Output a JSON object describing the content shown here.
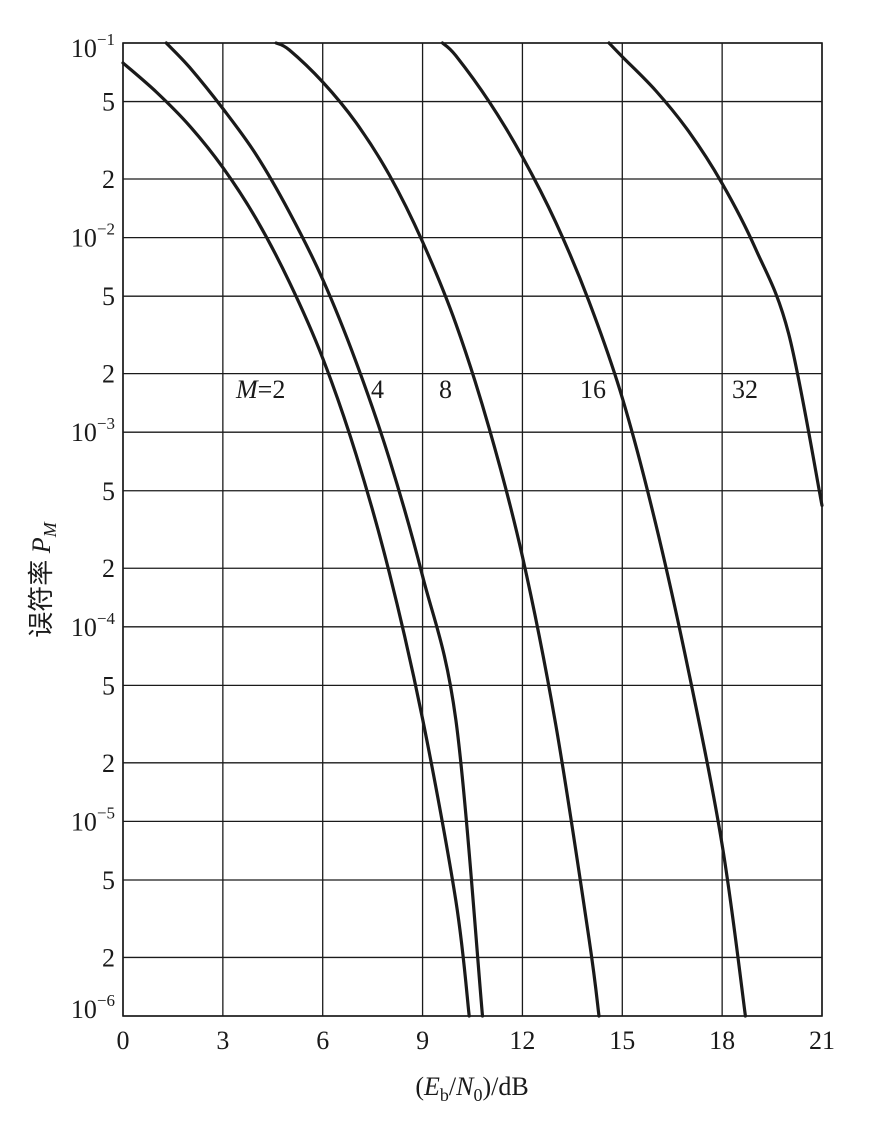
{
  "chart_data": {
    "type": "line",
    "xlabel": "(E_b/N_0)/dB",
    "xlabel_parts": {
      "open": "(",
      "e": "E",
      "e_sub": "b",
      "slash": "/",
      "n": "N",
      "n_sub": "0",
      "close": ")/dB"
    },
    "ylabel": "误符率 P_M",
    "ylabel_parts": {
      "text": "误符率 ",
      "p": "P",
      "p_sub": "M"
    },
    "x_ticks": [
      "0",
      "3",
      "6",
      "9",
      "12",
      "15",
      "18",
      "21"
    ],
    "xlim": [
      0,
      21
    ],
    "y_scale": "log",
    "ylim": [
      1e-06,
      0.1
    ],
    "y_ticks": [
      {
        "value": 0.1,
        "label": "10",
        "exp": "−1"
      },
      {
        "value": 0.05,
        "label": "5",
        "exp": ""
      },
      {
        "value": 0.02,
        "label": "2",
        "exp": ""
      },
      {
        "value": 0.01,
        "label": "10",
        "exp": "−2"
      },
      {
        "value": 0.005,
        "label": "5",
        "exp": ""
      },
      {
        "value": 0.002,
        "label": "2",
        "exp": ""
      },
      {
        "value": 0.001,
        "label": "10",
        "exp": "−3"
      },
      {
        "value": 0.0005,
        "label": "5",
        "exp": ""
      },
      {
        "value": 0.0002,
        "label": "2",
        "exp": ""
      },
      {
        "value": 0.0001,
        "label": "10",
        "exp": "−4"
      },
      {
        "value": 5e-05,
        "label": "5",
        "exp": ""
      },
      {
        "value": 2e-05,
        "label": "2",
        "exp": ""
      },
      {
        "value": 1e-05,
        "label": "10",
        "exp": "−5"
      },
      {
        "value": 5e-06,
        "label": "5",
        "exp": ""
      },
      {
        "value": 2e-06,
        "label": "2",
        "exp": ""
      },
      {
        "value": 1e-06,
        "label": "10",
        "exp": "−6"
      }
    ],
    "grid": true,
    "series": [
      {
        "name": "M=2",
        "label_parts": {
          "m": "M",
          "rest": "=2"
        },
        "x": [
          0,
          1,
          2,
          3,
          4,
          5,
          6,
          7,
          8,
          9,
          10,
          10.4
        ],
        "y": [
          0.079,
          0.056,
          0.0375,
          0.0229,
          0.0125,
          0.0059,
          0.0024,
          0.00077,
          0.00019,
          3.36e-05,
          3.9e-06,
          1e-06
        ]
      },
      {
        "name": "4",
        "label_parts": {
          "m": "",
          "rest": "4"
        },
        "x": [
          1.3,
          2,
          3,
          4,
          5,
          6,
          7,
          8,
          9,
          10,
          10.8
        ],
        "y": [
          0.1,
          0.075,
          0.046,
          0.0267,
          0.0135,
          0.0061,
          0.0023,
          0.00073,
          0.000182,
          3.31e-05,
          1e-06
        ]
      },
      {
        "name": "8",
        "label_parts": {
          "m": "",
          "rest": "8"
        },
        "x": [
          4.6,
          5,
          6,
          7,
          8,
          9,
          10,
          11,
          12,
          13,
          14,
          14.3
        ],
        "y": [
          0.1,
          0.092,
          0.063,
          0.039,
          0.021,
          0.0095,
          0.0036,
          0.00105,
          0.00023,
          3.15e-05,
          2.5e-06,
          1e-06
        ]
      },
      {
        "name": "16",
        "label_parts": {
          "m": "",
          "rest": "16"
        },
        "x": [
          9.6,
          10,
          11,
          12,
          13,
          14,
          15,
          16,
          17,
          18,
          18.7
        ],
        "y": [
          0.1,
          0.086,
          0.05,
          0.026,
          0.012,
          0.0047,
          0.0015,
          0.00034,
          5.8e-05,
          7.6e-06,
          1e-06
        ]
      },
      {
        "name": "32",
        "label_parts": {
          "m": "",
          "rest": "32"
        },
        "x": [
          14.6,
          15,
          16,
          17,
          18,
          19,
          20,
          21
        ],
        "y": [
          0.1,
          0.085,
          0.057,
          0.035,
          0.019,
          0.0088,
          0.0032,
          0.00042
        ]
      }
    ]
  }
}
